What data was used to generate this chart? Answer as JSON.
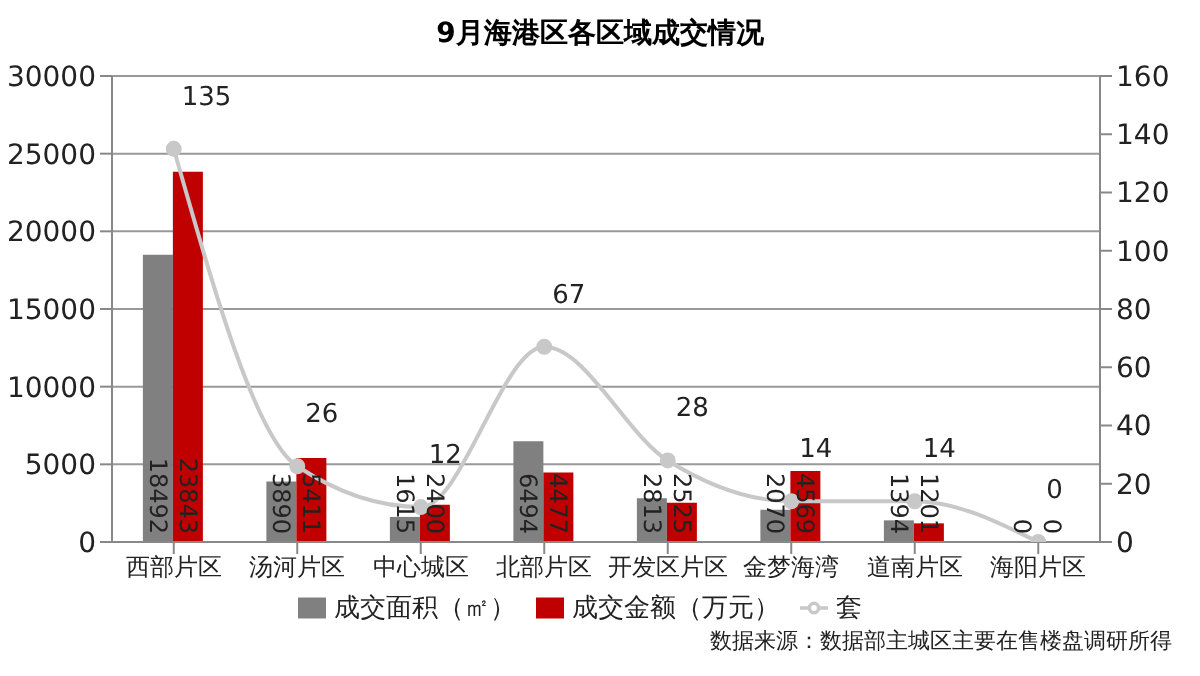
{
  "chart_data": {
    "type": "bar",
    "title": "9月海港区各区域成交情况",
    "categories": [
      "西部片区",
      "汤河片区",
      "中心城区",
      "北部片区",
      "开发区片区",
      "金梦海湾",
      "道南片区",
      "海阳片区"
    ],
    "series": [
      {
        "name": "成交面积（㎡）",
        "color": "#808080",
        "values": [
          18492,
          3890,
          1615,
          6494,
          2813,
          2070,
          1394,
          0
        ]
      },
      {
        "name": "成交金额（万元）",
        "color": "#c00000",
        "values": [
          23843,
          5411,
          2400,
          4477,
          2525,
          4569,
          1201,
          0
        ]
      },
      {
        "name": "套",
        "type": "line",
        "axis": "y2",
        "color": "#c8c8c8",
        "marker": "circle",
        "values": [
          135,
          26,
          12,
          67,
          28,
          14,
          14,
          0
        ]
      }
    ],
    "ylim": [
      0,
      30000
    ],
    "yticks": [
      0,
      5000,
      10000,
      15000,
      20000,
      25000,
      30000
    ],
    "y2lim": [
      0,
      160
    ],
    "y2ticks": [
      0,
      20,
      40,
      60,
      80,
      100,
      120,
      140,
      160
    ],
    "grid": "y",
    "legend": "bottom",
    "data_labels": true,
    "annotations": [
      "数据来源：数据部主城区主要在售楼盘调研所得"
    ]
  }
}
